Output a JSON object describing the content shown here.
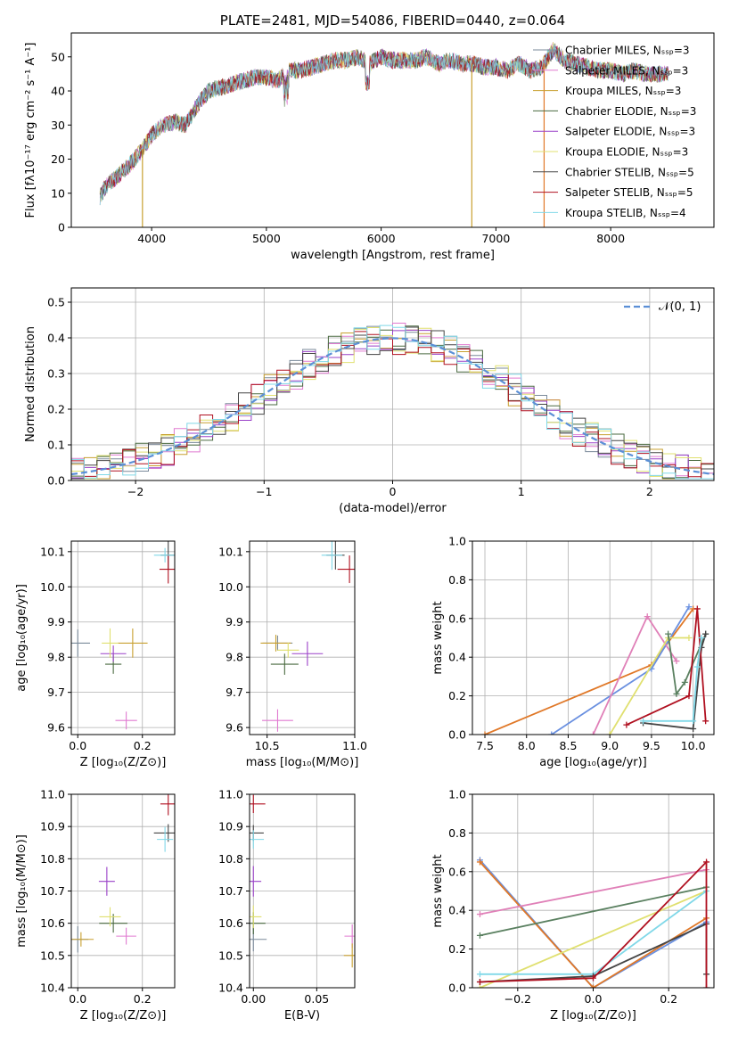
{
  "colors": {
    "cm": "#7a8a9a",
    "sm": "#e07ad0",
    "km": "#c8a030",
    "ce": "#4a6a40",
    "se": "#9a40c8",
    "ke": "#e0e070",
    "cs": "#444444",
    "ss": "#b01020",
    "ks": "#80d8e8",
    "c1": "#6a90e0",
    "c2": "#e07828",
    "c3": "#5a8060",
    "c4": "#e080b8",
    "gauss": "#5b8fd6"
  },
  "chart_data": [
    {
      "type": "line",
      "title": "PLATE=2481, MJD=54086, FIBERID=0440, z=0.064",
      "xlabel": "wavelength [Angstrom, rest frame]",
      "ylabel": "Flux [fλ10⁻¹⁷ erg cm⁻² s⁻¹ A⁻¹]",
      "xlim": [
        3300,
        8900
      ],
      "ylim": [
        0,
        57
      ],
      "xticks": [
        "4000",
        "5000",
        "6000",
        "7000",
        "8000"
      ],
      "yticks": [
        "0",
        "10",
        "20",
        "30",
        "40",
        "50"
      ],
      "legend": "top-right",
      "legend_entries": [
        "Chabrier MILES, Nₛₛₚ=3",
        "Salpeter MILES, Nₛₛₚ=3",
        "Kroupa MILES, Nₛₛₚ=3",
        "Chabrier ELODIE, Nₛₛₚ=3",
        "Salpeter ELODIE, Nₛₛₚ=3",
        "Kroupa ELODIE, Nₛₛₚ=3",
        "Chabrier STELIB, Nₛₛₚ=5",
        "Salpeter STELIB, Nₛₛₚ=5",
        "Kroupa STELIB, Nₛₛₚ=4"
      ],
      "spectrum": {
        "x": [
          3550,
          3600,
          3700,
          3800,
          3900,
          4000,
          4100,
          4200,
          4300,
          4400,
          4500,
          4600,
          4700,
          4800,
          4900,
          5000,
          5100,
          5200,
          5300,
          5400,
          5500,
          5600,
          5700,
          5800,
          5900,
          6000,
          6100,
          6200,
          6300,
          6400,
          6500,
          6600,
          6700,
          6800,
          6900,
          7000,
          7100,
          7200,
          7300,
          7400,
          7500,
          7600,
          7700,
          7800,
          7900,
          8000,
          8100,
          8200,
          8300,
          8400,
          8500
        ],
        "y": [
          9,
          12,
          15,
          18,
          22,
          27,
          30,
          31,
          30,
          36,
          40,
          41,
          42,
          43,
          44,
          44,
          43,
          46,
          46,
          47,
          48,
          49,
          49,
          50,
          48,
          50,
          49,
          49,
          49,
          50,
          48,
          49,
          48,
          48,
          47,
          47,
          46,
          48,
          46,
          47,
          52,
          49,
          48,
          47,
          46,
          46,
          45,
          46,
          45,
          45,
          45
        ]
      },
      "drops": [
        {
          "x": 3920,
          "series": "km"
        },
        {
          "x": 6790,
          "series": "km"
        },
        {
          "x": 7420,
          "series": "c2"
        }
      ]
    },
    {
      "type": "bar",
      "xlabel": "(data-model)/error",
      "ylabel": "Normed distribution",
      "xlim": [
        -2.5,
        2.5
      ],
      "ylim": [
        0,
        0.54
      ],
      "xticks": [
        "−2",
        "−1",
        "0",
        "1",
        "2"
      ],
      "yticks": [
        "0.0",
        "0.1",
        "0.2",
        "0.3",
        "0.4",
        "0.5"
      ],
      "legend": "top-right",
      "gauss_label": "𝒩(0, 1)",
      "bin_width": 0.1,
      "bin_start": -2.5
    },
    {
      "type": "scatter",
      "xlabel": "Z [log₁₀(Z/Z⊙)]",
      "ylabel": "age  [log₁₀(age/yr)]",
      "xlim": [
        -0.02,
        0.3
      ],
      "ylim": [
        9.58,
        10.13
      ],
      "xticks": [
        "0.0",
        "0.2"
      ],
      "yticks": [
        "9.6",
        "9.7",
        "9.8",
        "9.9",
        "10.0",
        "10.1"
      ],
      "points": [
        {
          "s": "cm",
          "x": 0.0,
          "y": 9.84
        },
        {
          "s": "sm",
          "x": 0.15,
          "y": 9.62
        },
        {
          "s": "km",
          "x": 0.17,
          "y": 9.84
        },
        {
          "s": "ce",
          "x": 0.11,
          "y": 9.78
        },
        {
          "s": "se",
          "x": 0.11,
          "y": 9.81
        },
        {
          "s": "ke",
          "x": 0.1,
          "y": 9.84
        },
        {
          "s": "cs",
          "x": 0.28,
          "y": 10.09
        },
        {
          "s": "ss",
          "x": 0.28,
          "y": 10.05
        },
        {
          "s": "ks",
          "x": 0.27,
          "y": 10.09
        }
      ]
    },
    {
      "type": "scatter",
      "xlabel": "mass [log₁₀(M/M⊙)]",
      "ylabel": "",
      "xlim": [
        10.4,
        11.0
      ],
      "ylim": [
        9.58,
        10.13
      ],
      "xticks": [
        "10.5",
        "11.0"
      ],
      "yticks": [
        "9.6",
        "9.7",
        "9.8",
        "9.9",
        "10.0",
        "10.1"
      ],
      "points": [
        {
          "s": "cm",
          "x": 10.56,
          "y": 9.84
        },
        {
          "s": "sm",
          "x": 10.56,
          "y": 9.62
        },
        {
          "s": "km",
          "x": 10.55,
          "y": 9.84
        },
        {
          "s": "ce",
          "x": 10.6,
          "y": 9.78
        },
        {
          "s": "se",
          "x": 10.73,
          "y": 9.81
        },
        {
          "s": "ke",
          "x": 10.62,
          "y": 9.82
        },
        {
          "s": "cs",
          "x": 10.89,
          "y": 10.09
        },
        {
          "s": "ss",
          "x": 10.97,
          "y": 10.05
        },
        {
          "s": "ks",
          "x": 10.87,
          "y": 10.09
        }
      ]
    },
    {
      "type": "line",
      "xlabel": "age  [log₁₀(age/yr)]",
      "ylabel": "mass weight",
      "xlim": [
        7.35,
        10.25
      ],
      "ylim": [
        0,
        1.0
      ],
      "xticks": [
        "7.5",
        "8.0",
        "8.5",
        "9.0",
        "9.5",
        "10.0"
      ],
      "yticks": [
        "0.0",
        "0.2",
        "0.4",
        "0.6",
        "0.8",
        "1.0"
      ],
      "series": [
        {
          "s": "c2",
          "x": [
            7.5,
            9.5,
            10.0
          ],
          "y": [
            0.0,
            0.36,
            0.65
          ]
        },
        {
          "s": "c1",
          "x": [
            8.3,
            9.5,
            9.95
          ],
          "y": [
            0.0,
            0.34,
            0.66
          ]
        },
        {
          "s": "c4",
          "x": [
            8.8,
            9.45,
            9.8
          ],
          "y": [
            0.0,
            0.61,
            0.38
          ]
        },
        {
          "s": "ke",
          "x": [
            9.0,
            9.7,
            9.95
          ],
          "y": [
            0.0,
            0.5,
            0.5
          ]
        },
        {
          "s": "c3",
          "x": [
            9.7,
            9.8,
            9.9,
            10.15
          ],
          "y": [
            0.52,
            0.21,
            0.27,
            0.52
          ]
        },
        {
          "s": "cs",
          "x": [
            9.4,
            10.0,
            10.1,
            10.15
          ],
          "y": [
            0.06,
            0.03,
            0.45,
            0.52
          ]
        },
        {
          "s": "ss",
          "x": [
            9.2,
            9.95,
            10.05,
            10.15
          ],
          "y": [
            0.05,
            0.2,
            0.65,
            0.07
          ]
        },
        {
          "s": "ks",
          "x": [
            9.4,
            10.0,
            10.05,
            10.1
          ],
          "y": [
            0.07,
            0.07,
            0.35,
            0.5
          ]
        }
      ]
    },
    {
      "type": "scatter",
      "xlabel": "Z [log₁₀(Z/Z⊙)]",
      "ylabel": "mass [log₁₀(M/M⊙)]",
      "xlim": [
        -0.02,
        0.3
      ],
      "ylim": [
        10.4,
        11.0
      ],
      "xticks": [
        "0.0",
        "0.2"
      ],
      "yticks": [
        "10.4",
        "10.5",
        "10.6",
        "10.7",
        "10.8",
        "10.9",
        "11.0"
      ],
      "points": [
        {
          "s": "cm",
          "x": 0.0,
          "y": 10.55
        },
        {
          "s": "sm",
          "x": 0.15,
          "y": 10.56
        },
        {
          "s": "km",
          "x": 0.01,
          "y": 10.55
        },
        {
          "s": "ce",
          "x": 0.11,
          "y": 10.6
        },
        {
          "s": "se",
          "x": 0.09,
          "y": 10.73
        },
        {
          "s": "ke",
          "x": 0.1,
          "y": 10.62
        },
        {
          "s": "cs",
          "x": 0.28,
          "y": 10.88
        },
        {
          "s": "ss",
          "x": 0.28,
          "y": 10.97
        },
        {
          "s": "ks",
          "x": 0.27,
          "y": 10.86
        }
      ]
    },
    {
      "type": "scatter",
      "xlabel": "E(B-V)",
      "ylabel": "",
      "xlim": [
        -0.003,
        0.08
      ],
      "ylim": [
        10.4,
        11.0
      ],
      "xticks": [
        "0.00",
        "0.05"
      ],
      "yticks": [
        "10.4",
        "10.5",
        "10.6",
        "10.7",
        "10.8",
        "10.9",
        "11.0"
      ],
      "points": [
        {
          "s": "cm",
          "x": 0.0,
          "y": 10.55
        },
        {
          "s": "sm",
          "x": 0.078,
          "y": 10.56
        },
        {
          "s": "km",
          "x": 0.078,
          "y": 10.5
        },
        {
          "s": "ce",
          "x": 0.0,
          "y": 10.6
        },
        {
          "s": "se",
          "x": 0.0,
          "y": 10.73
        },
        {
          "s": "ke",
          "x": 0.0,
          "y": 10.62
        },
        {
          "s": "cs",
          "x": 0.0,
          "y": 10.88
        },
        {
          "s": "ss",
          "x": 0.0,
          "y": 10.97
        },
        {
          "s": "ks",
          "x": 0.0,
          "y": 10.86
        }
      ]
    },
    {
      "type": "line",
      "xlabel": "Z [log₁₀(Z/Z⊙)]",
      "ylabel": "mass weight",
      "xlim": [
        -0.32,
        0.32
      ],
      "ylim": [
        0,
        1.0
      ],
      "xticks": [
        "−0.2",
        "0.0",
        "0.2"
      ],
      "yticks": [
        "0.0",
        "0.2",
        "0.4",
        "0.6",
        "0.8",
        "1.0"
      ],
      "series": [
        {
          "s": "c1",
          "x": [
            -0.3,
            0.0,
            0.3
          ],
          "y": [
            0.66,
            0.0,
            0.34
          ]
        },
        {
          "s": "c2",
          "x": [
            -0.3,
            0.0,
            0.3
          ],
          "y": [
            0.65,
            0.0,
            0.36
          ]
        },
        {
          "s": "c4",
          "x": [
            -0.3,
            0.3
          ],
          "y": [
            0.38,
            0.61
          ]
        },
        {
          "s": "c3",
          "x": [
            -0.3,
            0.3
          ],
          "y": [
            0.27,
            0.52
          ]
        },
        {
          "s": "ke",
          "x": [
            -0.3,
            0.3
          ],
          "y": [
            0.0,
            0.5
          ]
        },
        {
          "s": "ks",
          "x": [
            -0.3,
            0.0,
            0.3
          ],
          "y": [
            0.07,
            0.07,
            0.5
          ]
        },
        {
          "s": "cs",
          "x": [
            -0.3,
            0.0,
            0.3,
            0.3
          ],
          "y": [
            0.03,
            0.06,
            0.33,
            0.07
          ]
        },
        {
          "s": "ss",
          "x": [
            -0.3,
            0.0,
            0.3,
            0.3
          ],
          "y": [
            0.03,
            0.05,
            0.65,
            0.0
          ]
        }
      ]
    }
  ]
}
